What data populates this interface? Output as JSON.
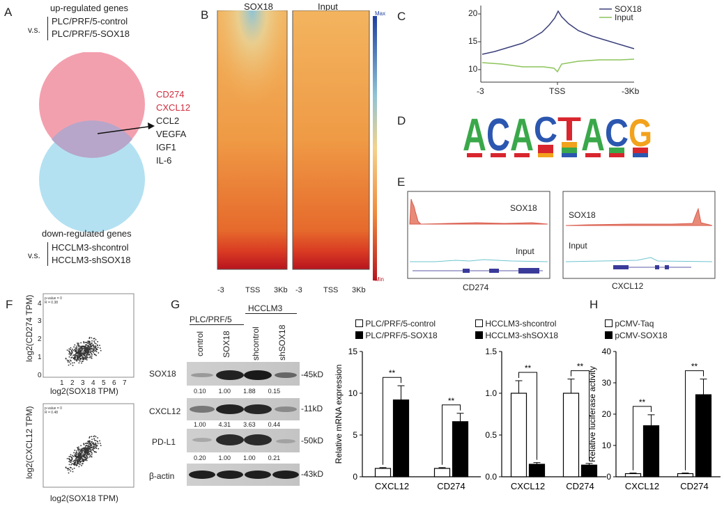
{
  "panel_labels": {
    "A": "A",
    "B": "B",
    "C": "C",
    "D": "D",
    "E": "E",
    "F": "F",
    "G": "G",
    "H": "H"
  },
  "panel_a": {
    "up_title": "up-regulated genes",
    "vs1": "v.s.",
    "up_line1": "PLC/PRF/5-control",
    "up_line2": "PLC/PRF/5-SOX18",
    "genes": [
      "CD274",
      "CXCL12",
      "CCL2",
      "VEGFA",
      "IGF1",
      "IL-6"
    ],
    "gene_colors": [
      "#d02a3a",
      "#d02a3a",
      "#222222",
      "#222222",
      "#222222",
      "#222222"
    ],
    "down_title": "down-regulated genes",
    "vs2": "v.s.",
    "down_line1": "HCCLM3-shcontrol",
    "down_line2": "HCCLM3-shSOX18",
    "venn_colors": {
      "up": "#f3a0ae",
      "down": "#a6dcef"
    }
  },
  "panel_b": {
    "col1_title": "SOX18",
    "col2_title": "Input",
    "x_ticks": [
      "-3",
      "TSS",
      "3Kb"
    ],
    "scale_max": "Max",
    "scale_min": "Min"
  },
  "panel_c": {
    "legend": [
      "SOX18",
      "Input"
    ],
    "colors": {
      "SOX18": "#3a3f7a",
      "Input": "#8cc45a"
    },
    "y_ticks": [
      "20",
      "15",
      "10"
    ],
    "x_ticks": [
      "-3",
      "TSS",
      "-3Kb"
    ]
  },
  "panel_d": {
    "motif": [
      "A",
      "C",
      "A",
      "C",
      "T",
      "A",
      "C",
      "G"
    ],
    "motif_colors": {
      "A": "#3aa84a",
      "C": "#2b57b0",
      "G": "#f2a21c",
      "T": "#d9262e"
    }
  },
  "panel_e": {
    "left": {
      "track1": "SOX18",
      "track2": "Input",
      "gene": "CD274"
    },
    "right": {
      "track1": "SOX18",
      "track2": "Input",
      "gene": "CXCL12"
    }
  },
  "panel_f": {
    "plot1": {
      "ylabel": "log2(CD274 TPM)",
      "xlabel": "log2(SOX18 TPM)",
      "stat1": "p-value = 0",
      "stat2": "R = 0.38"
    },
    "plot2": {
      "ylabel": "log2(CXCL12 TPM)",
      "xlabel": "log2(SOX18 TPM)",
      "stat1": "p-value = 0",
      "stat2": "R = 0.48"
    },
    "x_ticks": [
      "1",
      "2",
      "3",
      "4",
      "5",
      "6",
      "7"
    ],
    "y_ticks": [
      "0",
      "1",
      "2",
      "3",
      "4"
    ]
  },
  "panel_g": {
    "group1": "PLC/PRF/5",
    "group2": "HCCLM3",
    "lanes": [
      "control",
      "SOX18",
      "shcontrol",
      "shSOX18"
    ],
    "rows": [
      {
        "name": "SOX18",
        "size": "-45kD",
        "quant": [
          "0.10",
          "1.00",
          "1.88",
          "0.15"
        ]
      },
      {
        "name": "CXCL12",
        "size": "-11kD",
        "quant": [
          "1.00",
          "4.31",
          "3.63",
          "0.44"
        ]
      },
      {
        "name": "PD-L1",
        "size": "-50kD",
        "quant": [
          "0.20",
          "1.00",
          "1.00",
          "0.21"
        ]
      },
      {
        "name": "β-actin",
        "size": "-43kD",
        "quant": []
      }
    ]
  },
  "chart_data": [
    {
      "type": "bar",
      "ylabel": "Relative mRNA expression",
      "categories": [
        "CXCL12",
        "CD274"
      ],
      "series": [
        {
          "name": "PLC/PRF/5-control",
          "values": [
            1.0,
            1.0
          ],
          "errors": [
            0.1,
            0.1
          ],
          "color": "#ffffff"
        },
        {
          "name": "PLC/PRF/5-SOX18",
          "values": [
            9.2,
            6.6
          ],
          "errors": [
            1.7,
            1.0
          ],
          "color": "#000000"
        }
      ],
      "ylim": [
        0,
        15
      ],
      "y_ticks": [
        "0",
        "5",
        "10",
        "15"
      ],
      "significance": [
        "**",
        "**"
      ]
    },
    {
      "type": "bar",
      "categories": [
        "CXCL12",
        "CD274"
      ],
      "series": [
        {
          "name": "HCCLM3-shcontrol",
          "values": [
            1.0,
            1.0
          ],
          "errors": [
            0.15,
            0.17
          ],
          "color": "#ffffff"
        },
        {
          "name": "HCCLM3-shSOX18",
          "values": [
            0.15,
            0.14
          ],
          "errors": [
            0.02,
            0.02
          ],
          "color": "#000000"
        }
      ],
      "ylim": [
        0,
        1.5
      ],
      "y_ticks": [
        "0.0",
        "0.5",
        "1.0",
        "1.5"
      ],
      "significance": [
        "**",
        "**"
      ]
    },
    {
      "type": "bar",
      "ylabel": "Relative luciferase activity",
      "categories": [
        "CXCL12",
        "CD274"
      ],
      "series": [
        {
          "name": "pCMV-Taq",
          "values": [
            1.0,
            1.0
          ],
          "errors": [
            0.2,
            0.2
          ],
          "color": "#ffffff"
        },
        {
          "name": "pCMV-SOX18",
          "values": [
            16.3,
            26.2
          ],
          "errors": [
            3.5,
            5.0
          ],
          "color": "#000000"
        }
      ],
      "ylim": [
        0,
        40
      ],
      "y_ticks": [
        "0",
        "10",
        "20",
        "30",
        "40"
      ],
      "significance": [
        "**",
        "**"
      ]
    }
  ]
}
